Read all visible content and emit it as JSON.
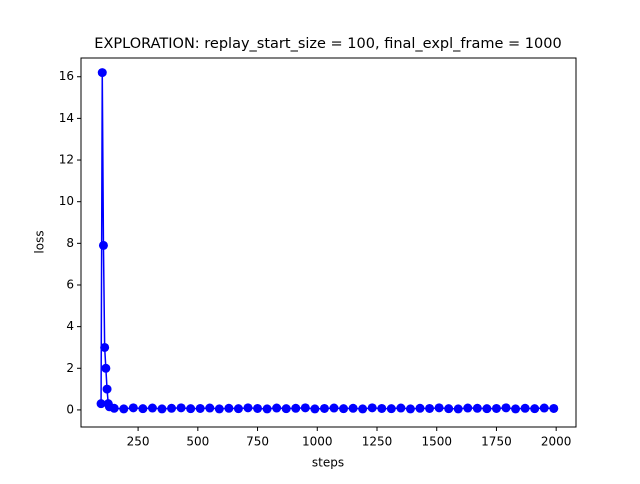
{
  "chart_data": {
    "type": "line",
    "title": "EXPLORATION: replay_start_size = 100, final_expl_frame = 1000",
    "x_label": "steps",
    "y_label": "loss",
    "x": [
      95,
      100,
      105,
      110,
      115,
      120,
      125,
      130,
      150,
      190,
      230,
      270,
      310,
      350,
      390,
      430,
      470,
      510,
      550,
      590,
      630,
      670,
      710,
      750,
      790,
      830,
      870,
      910,
      950,
      990,
      1030,
      1070,
      1110,
      1150,
      1190,
      1230,
      1270,
      1310,
      1350,
      1390,
      1430,
      1470,
      1510,
      1550,
      1590,
      1630,
      1670,
      1710,
      1750,
      1790,
      1830,
      1870,
      1910,
      1950,
      1990
    ],
    "values": [
      0.3,
      16.2,
      7.9,
      3.0,
      2.0,
      1.0,
      0.3,
      0.15,
      0.08,
      0.05,
      0.1,
      0.06,
      0.09,
      0.05,
      0.08,
      0.1,
      0.06,
      0.07,
      0.09,
      0.05,
      0.08,
      0.06,
      0.1,
      0.07,
      0.05,
      0.09,
      0.06,
      0.08,
      0.1,
      0.05,
      0.07,
      0.09,
      0.06,
      0.08,
      0.05,
      0.1,
      0.07,
      0.06,
      0.09,
      0.05,
      0.08,
      0.07,
      0.1,
      0.06,
      0.05,
      0.09,
      0.08,
      0.06,
      0.07,
      0.1,
      0.05,
      0.08,
      0.06,
      0.09,
      0.07
    ],
    "color": "#0000ff",
    "xlim": [
      11,
      2083
    ],
    "ylim": [
      -0.82,
      16.9
    ],
    "xticks": [
      250,
      500,
      750,
      1000,
      1250,
      1500,
      1750,
      2000
    ],
    "yticks": [
      0,
      2,
      4,
      6,
      8,
      10,
      12,
      14,
      16
    ]
  }
}
